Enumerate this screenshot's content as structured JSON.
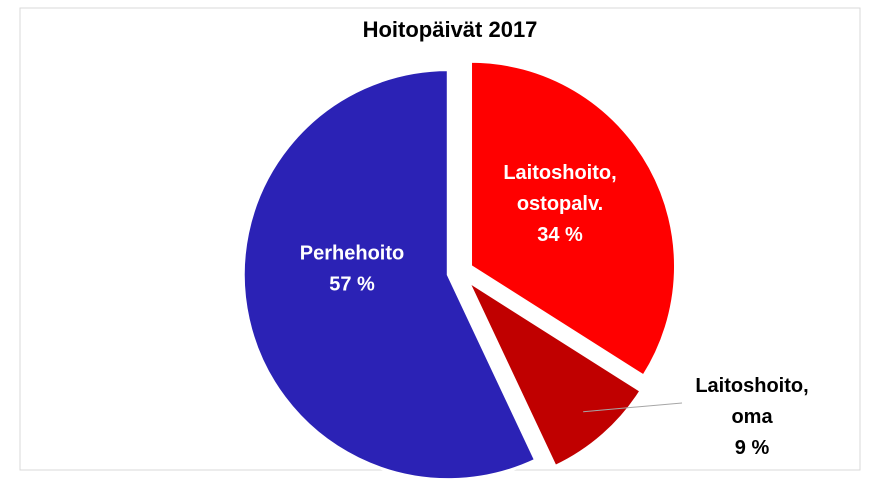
{
  "chart_data": {
    "type": "pie",
    "title": "Hoitopäivät 2017",
    "categories": [
      "Laitoshoito, ostopalv.",
      "Laitoshoito, oma",
      "Perhehoito"
    ],
    "values": [
      34,
      9,
      57
    ],
    "value_labels": [
      "34 %",
      "9 %",
      "57 %"
    ],
    "colors": [
      "#ff0000",
      "#c00000",
      "#2b22b5"
    ]
  }
}
